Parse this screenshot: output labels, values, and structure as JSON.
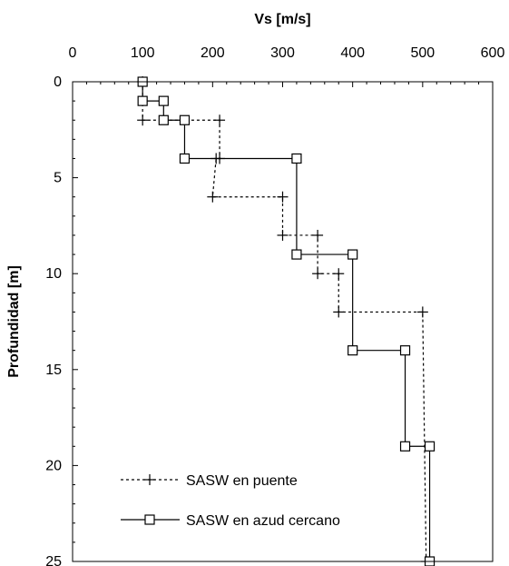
{
  "chart_data": {
    "type": "line",
    "title": "",
    "xlabel": "Vs [m/s]",
    "ylabel": "Profundidad [m]",
    "xlim": [
      0,
      600
    ],
    "ylim": [
      0,
      25
    ],
    "y_inverted": true,
    "x_axis_position": "top",
    "x_ticks": [
      0,
      100,
      200,
      300,
      400,
      500,
      600
    ],
    "y_ticks": [
      0,
      5,
      10,
      15,
      20,
      25
    ],
    "grid": false,
    "legend_position": "bottom-left",
    "series": [
      {
        "name": "SASW en puente",
        "line_style": "dotted",
        "marker": "plus",
        "color": "#000000",
        "points": [
          [
            100,
            0
          ],
          [
            100,
            2
          ],
          [
            210,
            2
          ],
          [
            210,
            4
          ],
          [
            205,
            4
          ],
          [
            200,
            6
          ],
          [
            300,
            6
          ],
          [
            300,
            8
          ],
          [
            350,
            8
          ],
          [
            350,
            10
          ],
          [
            380,
            10
          ],
          [
            380,
            12
          ],
          [
            500,
            12
          ],
          [
            505,
            25
          ]
        ]
      },
      {
        "name": "SASW en azud cercano",
        "line_style": "solid",
        "marker": "square",
        "color": "#000000",
        "points": [
          [
            100,
            0
          ],
          [
            100,
            1
          ],
          [
            130,
            1
          ],
          [
            130,
            2
          ],
          [
            160,
            2
          ],
          [
            160,
            4
          ],
          [
            320,
            4
          ],
          [
            320,
            9
          ],
          [
            400,
            9
          ],
          [
            400,
            14
          ],
          [
            475,
            14
          ],
          [
            475,
            19
          ],
          [
            510,
            19
          ],
          [
            510,
            25
          ]
        ]
      }
    ]
  }
}
